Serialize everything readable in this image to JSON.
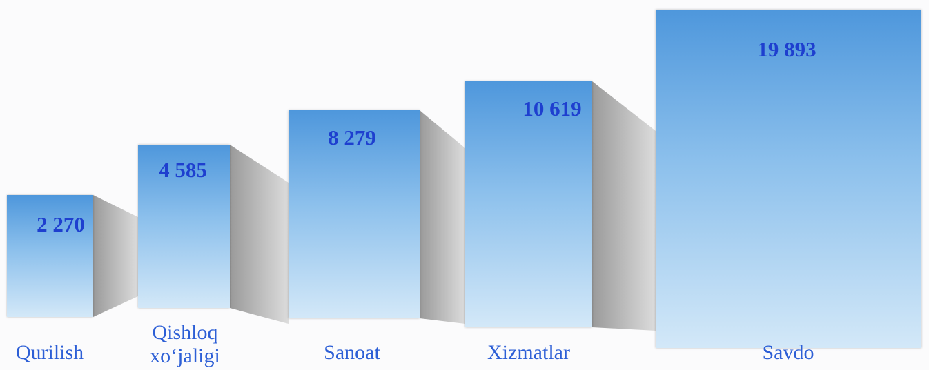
{
  "items": [
    {
      "value": "2 270",
      "label": "Qurilish"
    },
    {
      "value": "4 585",
      "label": "Qishloq xo‘jaligi"
    },
    {
      "value": "8 279",
      "label": "Sanoat"
    },
    {
      "value": "10 619",
      "label": "Xizmatlar"
    },
    {
      "value": "19 893",
      "label": "Savdo"
    }
  ]
}
